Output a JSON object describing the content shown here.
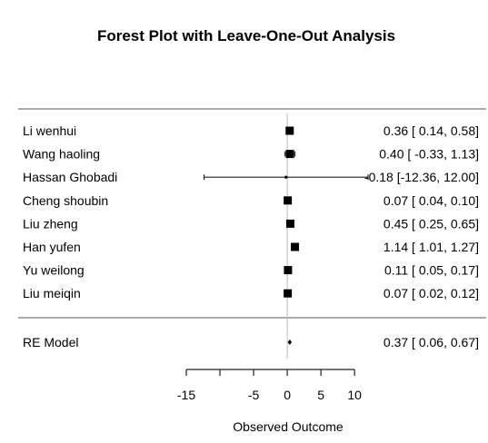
{
  "chart_data": {
    "type": "forest",
    "title": "Forest Plot with Leave-One-Out Analysis",
    "xlabel": "Observed Outcome",
    "xlim": [
      -15,
      12
    ],
    "xticks": [
      "-15",
      "-5",
      "0",
      "5",
      "10"
    ],
    "xtick_values": [
      -15,
      -5,
      0,
      5,
      10
    ],
    "minor_xticks": [
      -15,
      -10,
      -5,
      0,
      5,
      10
    ],
    "reference_line": 0,
    "studies": [
      {
        "label": "Li wenhui",
        "estimate": 0.36,
        "ci_low": 0.14,
        "ci_high": 0.58,
        "text": "0.36 [ 0.14, 0.58]"
      },
      {
        "label": "Wang haoling",
        "estimate": 0.4,
        "ci_low": -0.33,
        "ci_high": 1.13,
        "text": "0.40 [ -0.33, 1.13]"
      },
      {
        "label": "Hassan Ghobadi",
        "estimate": -0.18,
        "ci_low": -12.36,
        "ci_high": 12.0,
        "text": "-0.18 [-12.36, 12.00]"
      },
      {
        "label": "Cheng shoubin",
        "estimate": 0.07,
        "ci_low": 0.04,
        "ci_high": 0.1,
        "text": "0.07 [ 0.04, 0.10]"
      },
      {
        "label": "Liu zheng",
        "estimate": 0.45,
        "ci_low": 0.25,
        "ci_high": 0.65,
        "text": "0.45 [ 0.25, 0.65]"
      },
      {
        "label": "Han yufen",
        "estimate": 1.14,
        "ci_low": 1.01,
        "ci_high": 1.27,
        "text": "1.14 [ 1.01, 1.27]"
      },
      {
        "label": "Yu weilong",
        "estimate": 0.11,
        "ci_low": 0.05,
        "ci_high": 0.17,
        "text": "0.11 [ 0.05, 0.17]"
      },
      {
        "label": "Liu meiqin",
        "estimate": 0.07,
        "ci_low": 0.02,
        "ci_high": 0.12,
        "text": "0.07 [ 0.02, 0.12]"
      }
    ],
    "summary": {
      "label": "RE Model",
      "estimate": 0.37,
      "ci_low": 0.06,
      "ci_high": 0.67,
      "text": "0.37 [ 0.06, 0.67]"
    }
  }
}
